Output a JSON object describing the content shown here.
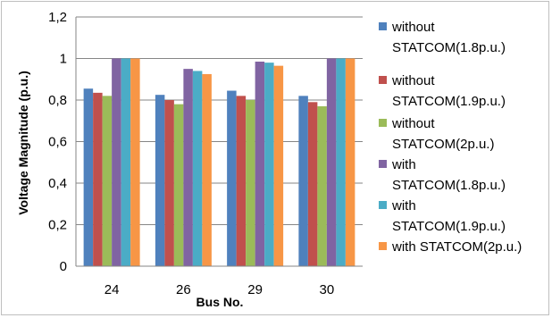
{
  "chart_data": {
    "type": "bar",
    "title": "",
    "xlabel": "Bus No.",
    "ylabel": "Voltage Magnitude (p.u.)",
    "categories": [
      "24",
      "26",
      "29",
      "30"
    ],
    "ylim": [
      0,
      1.2
    ],
    "yticks": [
      "0",
      "0,2",
      "0,4",
      "0,6",
      "0,8",
      "1",
      "1,2"
    ],
    "grid": true,
    "legend_position": "right",
    "series": [
      {
        "name": "without STATCOM(1.8p.u.)",
        "color": "#4f81bd",
        "values": [
          0.855,
          0.825,
          0.845,
          0.82
        ]
      },
      {
        "name": "without STATCOM(1.9p.u.)",
        "color": "#c0504d",
        "values": [
          0.835,
          0.8,
          0.82,
          0.79
        ]
      },
      {
        "name": "without STATCOM(2p.u.)",
        "color": "#9bbb59",
        "values": [
          0.82,
          0.78,
          0.8,
          0.77
        ]
      },
      {
        "name": "with STATCOM(1.8p.u.)",
        "color": "#8064a2",
        "values": [
          1.0,
          0.95,
          0.985,
          1.0
        ]
      },
      {
        "name": "with STATCOM(1.9p.u.)",
        "color": "#4bacc6",
        "values": [
          1.0,
          0.94,
          0.98,
          1.0
        ]
      },
      {
        "name": "with STATCOM(2p.u.)",
        "color": "#f79646",
        "values": [
          1.0,
          0.925,
          0.965,
          1.0
        ]
      }
    ]
  }
}
